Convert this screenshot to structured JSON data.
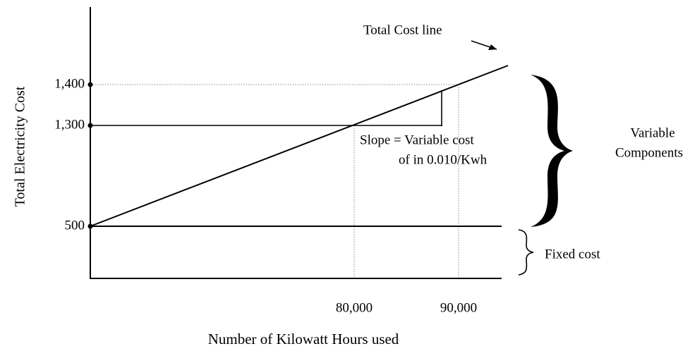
{
  "diagram": {
    "y_axis_label": "Total Electricity Cost",
    "x_axis_label": "Number of Kilowatt Hours used",
    "y_labels": [
      "1,400",
      "1,300",
      "500"
    ],
    "x_labels": [
      "80,000",
      "90,000"
    ],
    "total_cost_label": "Total Cost line",
    "slope_label": [
      "Slope = Variable cost",
      "of in 0.010/Kwh"
    ],
    "variable_label": [
      "Variable",
      "Components"
    ],
    "fixed_label": "Fixed cost"
  }
}
